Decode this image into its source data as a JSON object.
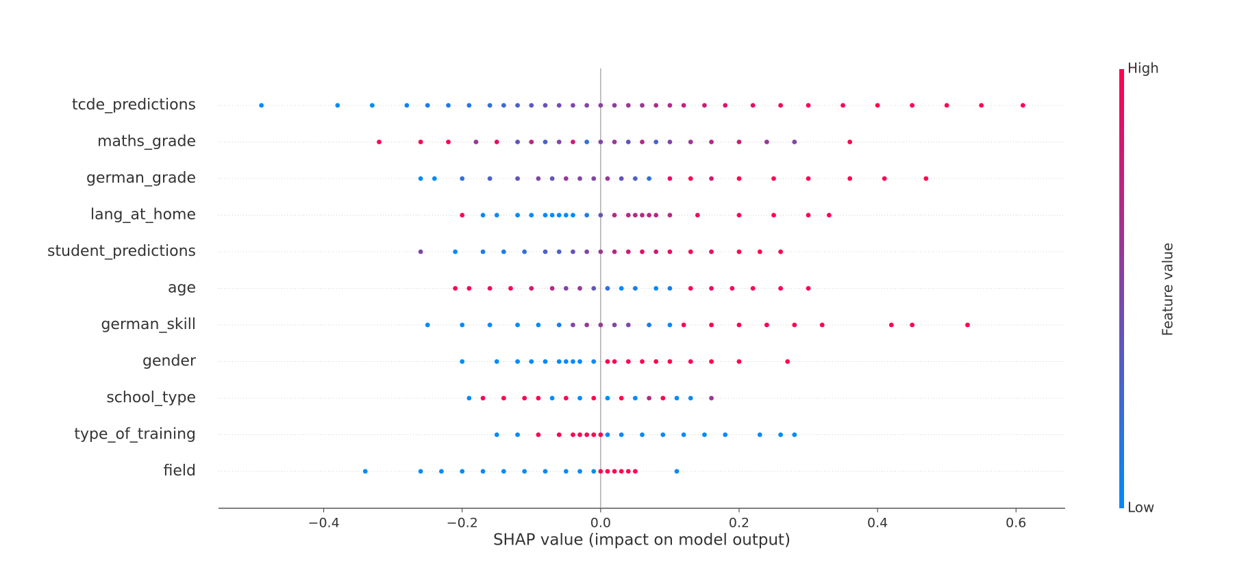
{
  "chart_data": {
    "type": "beeswarm",
    "x_label": "SHAP value (impact on model output)",
    "xlim": [
      -0.552,
      0.671
    ],
    "xticks": [
      {
        "value": -0.4,
        "label": "−0.4"
      },
      {
        "value": -0.2,
        "label": "−0.2"
      },
      {
        "value": 0.0,
        "label": "0.0"
      },
      {
        "value": 0.2,
        "label": "0.2"
      },
      {
        "value": 0.4,
        "label": "0.4"
      },
      {
        "value": 0.6,
        "label": "0.6"
      }
    ],
    "colorbar": {
      "label": "Feature value",
      "high": "High",
      "low": "Low",
      "colors": [
        "#008bfb",
        "#ff0052"
      ]
    },
    "series": [
      {
        "name": "tcde_predictions",
        "values": [
          -0.49,
          -0.38,
          -0.33,
          -0.28,
          -0.25,
          -0.22,
          -0.19,
          -0.16,
          -0.14,
          -0.12,
          -0.1,
          -0.08,
          -0.06,
          -0.04,
          -0.02,
          0.0,
          0.02,
          0.04,
          0.06,
          0.08,
          0.1,
          0.12,
          0.15,
          0.18,
          0.22,
          0.26,
          0.3,
          0.35,
          0.4,
          0.45,
          0.5,
          0.55,
          0.61
        ],
        "feature_values": [
          0,
          0,
          0,
          0.05,
          0.1,
          0.1,
          0.15,
          0.2,
          0.25,
          0.3,
          0.35,
          0.4,
          0.45,
          0.5,
          0.5,
          0.55,
          0.55,
          0.6,
          0.6,
          0.65,
          0.7,
          0.75,
          0.8,
          0.85,
          0.9,
          0.95,
          1,
          1,
          1,
          1,
          1,
          1,
          1
        ]
      },
      {
        "name": "maths_grade",
        "values": [
          -0.32,
          -0.26,
          -0.22,
          -0.18,
          -0.15,
          -0.12,
          -0.1,
          -0.08,
          -0.06,
          -0.04,
          -0.02,
          0,
          0.02,
          0.04,
          0.06,
          0.08,
          0.1,
          0.13,
          0.16,
          0.2,
          0.24,
          0.28,
          0.36
        ],
        "feature_values": [
          1,
          1,
          1,
          0.6,
          0.9,
          0.4,
          0.7,
          0.3,
          0.5,
          0.8,
          0.2,
          0.5,
          0.6,
          0.4,
          0.7,
          0.3,
          0.5,
          0.6,
          0.7,
          0.8,
          0.6,
          0.5,
          1
        ]
      },
      {
        "name": "german_grade",
        "values": [
          -0.26,
          -0.24,
          -0.2,
          -0.16,
          -0.12,
          -0.09,
          -0.07,
          -0.05,
          -0.03,
          -0.01,
          0.01,
          0.03,
          0.05,
          0.07,
          0.1,
          0.13,
          0.16,
          0.2,
          0.25,
          0.3,
          0.36,
          0.41,
          0.47
        ],
        "feature_values": [
          0,
          0,
          0.2,
          0.3,
          0.4,
          0.5,
          0.4,
          0.6,
          0.5,
          0.5,
          0.6,
          0.4,
          0.3,
          0.2,
          0.9,
          1,
          0.8,
          1,
          1,
          1,
          1,
          1,
          1
        ]
      },
      {
        "name": "lang_at_home",
        "values": [
          -0.2,
          -0.17,
          -0.15,
          -0.12,
          -0.1,
          -0.08,
          -0.07,
          -0.06,
          -0.05,
          -0.04,
          -0.02,
          0,
          0.02,
          0.04,
          0.05,
          0.06,
          0.07,
          0.08,
          0.1,
          0.14,
          0.2,
          0.25,
          0.3,
          0.33
        ],
        "feature_values": [
          1,
          0,
          0,
          0,
          0,
          0,
          0,
          0,
          0,
          0,
          0.1,
          0.4,
          0.7,
          0.7,
          0.7,
          0.7,
          0.7,
          0.7,
          0.7,
          0.9,
          1,
          1,
          1,
          1
        ]
      },
      {
        "name": "student_predictions",
        "values": [
          -0.26,
          -0.21,
          -0.17,
          -0.14,
          -0.11,
          -0.08,
          -0.06,
          -0.04,
          -0.02,
          0,
          0.02,
          0.04,
          0.06,
          0.08,
          0.1,
          0.13,
          0.16,
          0.2,
          0.23,
          0.26
        ],
        "feature_values": [
          0.5,
          0,
          0.1,
          0.1,
          0.2,
          0.3,
          0.3,
          0.4,
          0.5,
          0.6,
          0.7,
          0.8,
          0.9,
          0.8,
          0.9,
          1,
          0.9,
          1,
          1,
          1
        ]
      },
      {
        "name": "age",
        "values": [
          -0.21,
          -0.19,
          -0.16,
          -0.13,
          -0.1,
          -0.07,
          -0.05,
          -0.03,
          -0.01,
          0.01,
          0.03,
          0.05,
          0.08,
          0.1,
          0.13,
          0.16,
          0.19,
          0.22,
          0.26,
          0.3
        ],
        "feature_values": [
          1,
          1,
          0.9,
          1,
          0.8,
          0.7,
          0.5,
          0.6,
          0.4,
          0.2,
          0,
          0.1,
          0,
          0.1,
          1,
          0.9,
          1,
          1,
          1,
          1
        ]
      },
      {
        "name": "german_skill",
        "values": [
          -0.25,
          -0.2,
          -0.16,
          -0.12,
          -0.09,
          -0.06,
          -0.04,
          -0.02,
          0,
          0.02,
          0.04,
          0.07,
          0.1,
          0.12,
          0.16,
          0.2,
          0.24,
          0.28,
          0.32,
          0.42,
          0.45,
          0.53
        ],
        "feature_values": [
          0,
          0,
          0,
          0,
          0,
          0.1,
          0.5,
          0.6,
          0.6,
          0.5,
          0.5,
          0.1,
          0,
          1,
          1,
          1,
          1,
          1,
          1,
          1,
          1,
          1
        ]
      },
      {
        "name": "gender",
        "values": [
          -0.2,
          -0.15,
          -0.12,
          -0.1,
          -0.08,
          -0.06,
          -0.05,
          -0.04,
          -0.03,
          -0.01,
          0.01,
          0.02,
          0.04,
          0.06,
          0.08,
          0.1,
          0.13,
          0.16,
          0.2,
          0.27
        ],
        "feature_values": [
          0,
          0,
          0,
          0,
          0,
          0,
          0,
          0,
          0,
          0,
          1,
          1,
          1,
          1,
          1,
          1,
          1,
          1,
          1,
          1
        ]
      },
      {
        "name": "school_type",
        "values": [
          -0.19,
          -0.17,
          -0.14,
          -0.11,
          -0.09,
          -0.07,
          -0.05,
          -0.03,
          -0.01,
          0.01,
          0.03,
          0.05,
          0.07,
          0.09,
          0.11,
          0.13,
          0.16
        ],
        "feature_values": [
          0,
          1,
          1,
          1,
          1,
          0,
          1,
          0,
          1,
          0,
          1,
          0,
          0.7,
          1,
          0,
          0,
          0.6
        ]
      },
      {
        "name": "type_of_training",
        "values": [
          -0.15,
          -0.12,
          -0.09,
          -0.06,
          -0.04,
          -0.03,
          -0.02,
          -0.01,
          0,
          0.01,
          0.03,
          0.06,
          0.09,
          0.12,
          0.15,
          0.18,
          0.23,
          0.26,
          0.28
        ],
        "feature_values": [
          0,
          0,
          1,
          1,
          1,
          1,
          1,
          1,
          1,
          0,
          0,
          0,
          0,
          0,
          0,
          0,
          0,
          0,
          0
        ]
      },
      {
        "name": "field",
        "values": [
          -0.34,
          -0.26,
          -0.23,
          -0.2,
          -0.17,
          -0.14,
          -0.11,
          -0.08,
          -0.05,
          -0.03,
          -0.01,
          0,
          0.01,
          0.02,
          0.03,
          0.04,
          0.05,
          0.11
        ],
        "feature_values": [
          0,
          0,
          0,
          0,
          0,
          0,
          0,
          0,
          0,
          0,
          0,
          1,
          1,
          1,
          1,
          1,
          1,
          0
        ]
      }
    ]
  }
}
